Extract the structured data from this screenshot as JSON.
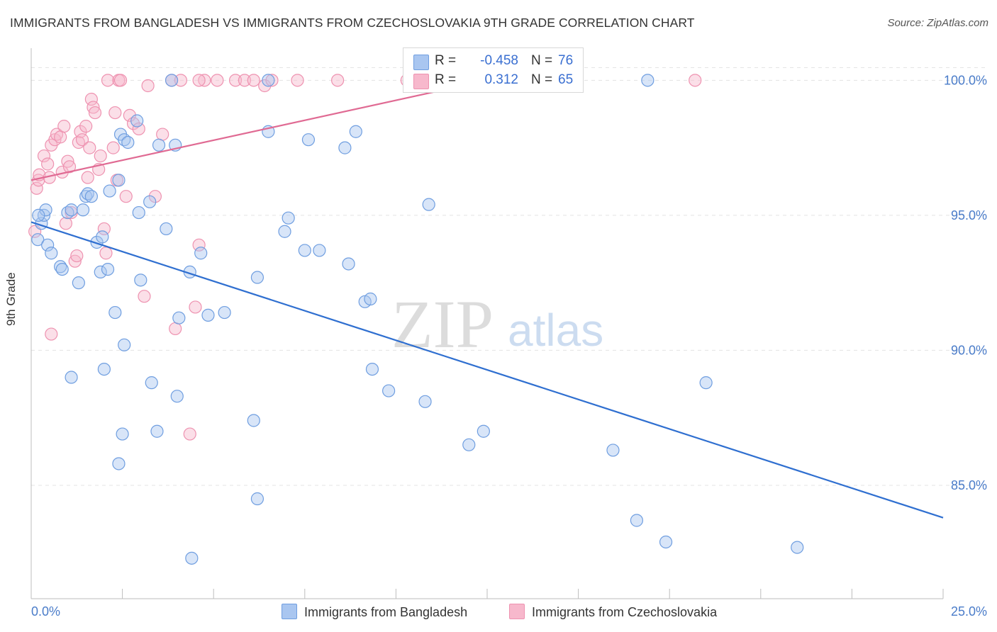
{
  "title": "IMMIGRANTS FROM BANGLADESH VS IMMIGRANTS FROM CZECHOSLOVAKIA 9TH GRADE CORRELATION CHART",
  "source": "Source: ZipAtlas.com",
  "watermark": {
    "zip": "ZIP",
    "atlas": "atlas"
  },
  "legend": {
    "rows": [
      {
        "swatch_color": "#a9c6f0",
        "r_label": "R =",
        "r_value": "-0.458",
        "n_label": "N =",
        "n_value": "76"
      },
      {
        "swatch_color": "#f7b8cc",
        "r_label": "R =",
        "r_value": "0.312",
        "n_label": "N =",
        "n_value": "65"
      }
    ]
  },
  "bottom_legend": [
    {
      "label": "Immigrants from Bangladesh",
      "color": "#a9c6f0"
    },
    {
      "label": "Immigrants from Czechoslovakia",
      "color": "#f7b8cc"
    }
  ],
  "colors": {
    "blue_fill": "#a9c6f0",
    "blue_stroke": "#6f9ee0",
    "blue_line": "#2f6fd0",
    "pink_fill": "#f7b8cc",
    "pink_stroke": "#ee92b0",
    "pink_line": "#e06a93",
    "grid": "#e3e3e3",
    "tick_text": "#4a7cc9"
  },
  "chart_data": {
    "type": "scatter",
    "title": "IMMIGRANTS FROM BANGLADESH VS IMMIGRANTS FROM CZECHOSLOVAKIA 9TH GRADE CORRELATION CHART",
    "xlabel": "",
    "ylabel": "9th Grade",
    "xlim": [
      0,
      25
    ],
    "ylim": [
      80.8,
      101.4
    ],
    "x_tick_labels": [
      "0.0%",
      "25.0%"
    ],
    "y_ticks": [
      85,
      90,
      95,
      100
    ],
    "y_tick_labels": [
      "85.0%",
      "90.0%",
      "95.0%",
      "100.0%"
    ],
    "grid": true,
    "legend_position": "top-center",
    "series": [
      {
        "name": "Immigrants from Bangladesh",
        "r": -0.458,
        "n": 76,
        "trend": {
          "x": [
            0.0,
            25.0
          ],
          "y": [
            94.75,
            83.8
          ]
        },
        "points": [
          [
            0.18,
            94.1
          ],
          [
            0.28,
            94.7
          ],
          [
            0.35,
            95.0
          ],
          [
            0.4,
            95.2
          ],
          [
            0.45,
            93.9
          ],
          [
            0.55,
            93.6
          ],
          [
            0.8,
            93.1
          ],
          [
            0.85,
            93.0
          ],
          [
            1.0,
            95.1
          ],
          [
            1.1,
            95.2
          ],
          [
            1.3,
            92.5
          ],
          [
            1.42,
            95.2
          ],
          [
            1.5,
            95.7
          ],
          [
            1.55,
            95.8
          ],
          [
            1.65,
            95.7
          ],
          [
            1.8,
            94.0
          ],
          [
            1.9,
            92.9
          ],
          [
            1.95,
            94.2
          ],
          [
            2.1,
            93.0
          ],
          [
            2.15,
            95.9
          ],
          [
            2.3,
            91.4
          ],
          [
            2.4,
            96.3
          ],
          [
            2.45,
            98.0
          ],
          [
            2.55,
            97.8
          ],
          [
            2.65,
            97.7
          ],
          [
            2.9,
            98.5
          ],
          [
            2.95,
            95.1
          ],
          [
            3.0,
            92.6
          ],
          [
            3.25,
            95.5
          ],
          [
            3.5,
            97.6
          ],
          [
            3.7,
            94.5
          ],
          [
            3.85,
            100.0
          ],
          [
            3.95,
            97.6
          ],
          [
            4.05,
            91.2
          ],
          [
            4.35,
            92.9
          ],
          [
            4.65,
            93.6
          ],
          [
            4.85,
            91.3
          ],
          [
            5.3,
            91.4
          ],
          [
            6.2,
            92.7
          ],
          [
            6.1,
            87.4
          ],
          [
            6.2,
            84.5
          ],
          [
            6.5,
            98.1
          ],
          [
            6.5,
            100.0
          ],
          [
            6.95,
            94.4
          ],
          [
            7.05,
            94.9
          ],
          [
            7.5,
            93.7
          ],
          [
            7.6,
            97.8
          ],
          [
            7.9,
            93.7
          ],
          [
            8.6,
            97.5
          ],
          [
            8.7,
            93.2
          ],
          [
            8.9,
            98.1
          ],
          [
            9.15,
            91.8
          ],
          [
            9.3,
            91.9
          ],
          [
            9.35,
            89.3
          ],
          [
            9.8,
            88.5
          ],
          [
            10.8,
            88.1
          ],
          [
            10.9,
            95.4
          ],
          [
            11.1,
            100.0
          ],
          [
            12.0,
            86.5
          ],
          [
            12.4,
            87.0
          ],
          [
            1.1,
            89.0
          ],
          [
            2.0,
            89.3
          ],
          [
            2.5,
            86.9
          ],
          [
            2.4,
            85.8
          ],
          [
            2.55,
            90.2
          ],
          [
            3.3,
            88.8
          ],
          [
            3.45,
            87.0
          ],
          [
            4.0,
            88.3
          ],
          [
            4.4,
            82.3
          ],
          [
            15.95,
            86.3
          ],
          [
            16.6,
            83.7
          ],
          [
            16.9,
            100.0
          ],
          [
            17.4,
            82.9
          ],
          [
            18.5,
            88.8
          ],
          [
            21.0,
            82.7
          ],
          [
            0.2,
            95.0
          ]
        ]
      },
      {
        "name": "Immigrants from Czechoslovakia",
        "r": 0.312,
        "n": 65,
        "trend": {
          "x": [
            0.0,
            12.5
          ],
          "y": [
            96.3,
            100.0
          ]
        },
        "points": [
          [
            0.15,
            96.0
          ],
          [
            0.2,
            96.3
          ],
          [
            0.22,
            96.5
          ],
          [
            0.35,
            97.2
          ],
          [
            0.45,
            96.9
          ],
          [
            0.5,
            96.4
          ],
          [
            0.55,
            97.6
          ],
          [
            0.65,
            97.8
          ],
          [
            0.7,
            98.0
          ],
          [
            0.8,
            97.9
          ],
          [
            0.85,
            96.6
          ],
          [
            0.9,
            98.3
          ],
          [
            0.95,
            94.7
          ],
          [
            1.0,
            97.0
          ],
          [
            1.05,
            96.8
          ],
          [
            1.1,
            95.1
          ],
          [
            1.2,
            93.3
          ],
          [
            1.25,
            93.5
          ],
          [
            1.3,
            97.7
          ],
          [
            1.35,
            98.1
          ],
          [
            1.4,
            97.8
          ],
          [
            1.5,
            98.3
          ],
          [
            1.55,
            96.4
          ],
          [
            1.6,
            97.5
          ],
          [
            1.65,
            99.3
          ],
          [
            1.7,
            99.0
          ],
          [
            1.75,
            98.8
          ],
          [
            1.85,
            96.7
          ],
          [
            1.9,
            97.2
          ],
          [
            2.05,
            93.6
          ],
          [
            2.0,
            94.5
          ],
          [
            2.1,
            100.0
          ],
          [
            2.25,
            97.5
          ],
          [
            2.3,
            98.8
          ],
          [
            2.35,
            96.3
          ],
          [
            2.4,
            100.0
          ],
          [
            2.45,
            100.0
          ],
          [
            2.6,
            95.7
          ],
          [
            2.7,
            98.7
          ],
          [
            2.8,
            98.4
          ],
          [
            2.95,
            98.2
          ],
          [
            3.1,
            92.0
          ],
          [
            3.2,
            99.8
          ],
          [
            3.4,
            95.7
          ],
          [
            3.6,
            98.0
          ],
          [
            3.85,
            100.0
          ],
          [
            3.95,
            90.8
          ],
          [
            4.1,
            100.0
          ],
          [
            4.35,
            86.9
          ],
          [
            4.5,
            91.6
          ],
          [
            4.6,
            93.9
          ],
          [
            4.75,
            100.0
          ],
          [
            5.1,
            100.0
          ],
          [
            5.6,
            100.0
          ],
          [
            5.85,
            100.0
          ],
          [
            6.1,
            100.0
          ],
          [
            6.4,
            99.8
          ],
          [
            6.6,
            100.0
          ],
          [
            7.3,
            100.0
          ],
          [
            8.4,
            100.0
          ],
          [
            0.55,
            90.6
          ],
          [
            4.6,
            100.0
          ],
          [
            10.3,
            100.0
          ],
          [
            0.1,
            94.4
          ],
          [
            18.2,
            100.0
          ]
        ]
      }
    ]
  }
}
